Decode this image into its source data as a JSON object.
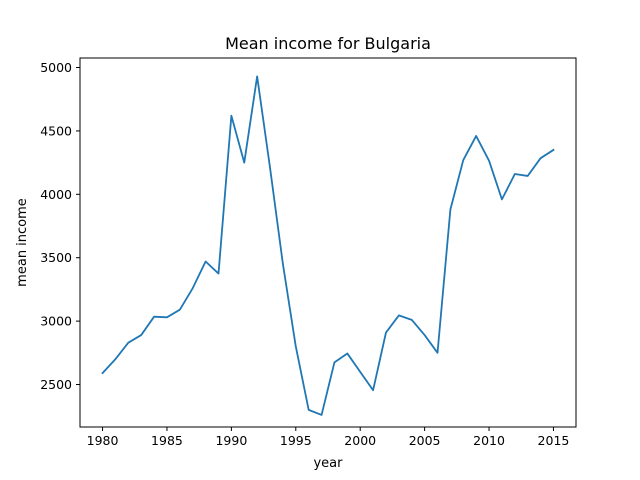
{
  "chart_data": {
    "type": "line",
    "title": "Mean income for Bulgaria",
    "xlabel": "year",
    "ylabel": "mean income",
    "xlim": [
      1978.25,
      1976.75
    ],
    "ylim": [
      2165,
      5075
    ],
    "x_ticks": [
      1980,
      1985,
      1990,
      1995,
      2000,
      2005,
      2010,
      2015
    ],
    "y_ticks": [
      2500,
      3000,
      3500,
      4000,
      4500,
      5000
    ],
    "grid": false,
    "legend": "none",
    "series": [
      {
        "color": "#1f77b4",
        "x": [
          1980,
          1981,
          1982,
          1983,
          1984,
          1985,
          1986,
          1987,
          1988,
          1989,
          1990,
          1991,
          1992,
          1993,
          1994,
          1995,
          1996,
          1997,
          1998,
          1999,
          2000,
          2001,
          2002,
          2003,
          2004,
          2005,
          2006,
          2007,
          2008,
          2009,
          2010,
          2011,
          2012,
          2013,
          2014,
          2015
        ],
        "y": [
          2590,
          2700,
          2830,
          2890,
          3035,
          3030,
          3090,
          3260,
          3470,
          3375,
          4620,
          4250,
          4930,
          4210,
          3450,
          2800,
          2300,
          2260,
          2675,
          2745,
          2600,
          2455,
          2910,
          3045,
          3010,
          2890,
          2750,
          3880,
          4270,
          4460,
          4265,
          3960,
          4160,
          4145,
          4285,
          4350
        ]
      }
    ]
  }
}
